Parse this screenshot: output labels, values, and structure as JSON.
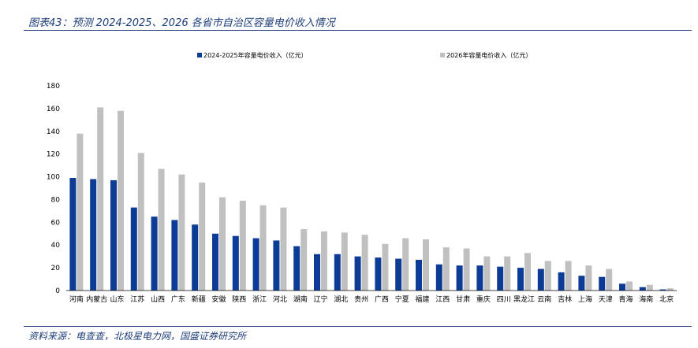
{
  "figure": {
    "title": "图表43：预测 2024-2025、2026 各省市自治区容量电价收入情况",
    "source": "资料来源：电查查，北极星电力网，国盛证券研究所"
  },
  "chart_data": {
    "type": "bar",
    "categories": [
      "河南",
      "内蒙古",
      "山东",
      "江苏",
      "山西",
      "广东",
      "新疆",
      "安徽",
      "陕西",
      "浙江",
      "河北",
      "湖南",
      "辽宁",
      "湖北",
      "贵州",
      "广西",
      "宁夏",
      "福建",
      "江西",
      "甘肃",
      "重庆",
      "四川",
      "黑龙江",
      "云南",
      "吉林",
      "上海",
      "天津",
      "青海",
      "海南",
      "北京"
    ],
    "series": [
      {
        "name": "2024-2025年容量电价收入（亿元）",
        "color": "#0d3c96",
        "values": [
          99,
          98,
          97,
          73,
          65,
          62,
          58,
          50,
          48,
          46,
          44,
          39,
          32,
          32,
          30,
          29,
          28,
          27,
          23,
          22,
          22,
          21,
          20,
          19,
          16,
          13,
          12,
          6,
          3,
          1
        ]
      },
      {
        "name": "2026年容量电价收入（亿元）",
        "color": "#c0c0c0",
        "values": [
          138,
          161,
          158,
          121,
          107,
          102,
          95,
          82,
          79,
          75,
          73,
          54,
          52,
          51,
          49,
          41,
          46,
          45,
          38,
          37,
          30,
          30,
          33,
          26,
          26,
          22,
          19,
          8,
          5,
          2
        ]
      }
    ],
    "ylim": [
      0,
      180
    ],
    "yticks": [
      0,
      20,
      40,
      60,
      80,
      100,
      120,
      140,
      160,
      180
    ],
    "grid": false,
    "legend": "top"
  }
}
